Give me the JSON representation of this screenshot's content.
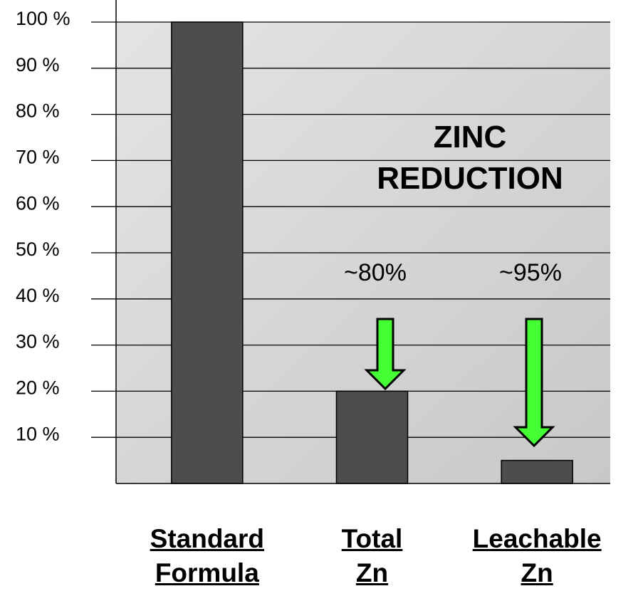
{
  "chart_data": {
    "type": "bar",
    "categories": [
      "Standard Formula",
      "Total Zn",
      "Leachable Zn"
    ],
    "values": [
      100,
      20,
      5
    ],
    "color": "#4d4d4d",
    "ylim": [
      0,
      100
    ],
    "yticks": [
      {
        "value": 10,
        "label": "10 %"
      },
      {
        "value": 20,
        "label": "20 %"
      },
      {
        "value": 30,
        "label": "30 %"
      },
      {
        "value": 40,
        "label": "40 %"
      },
      {
        "value": 50,
        "label": "50 %"
      },
      {
        "value": 60,
        "label": "60 %"
      },
      {
        "value": 70,
        "label": "70 %"
      },
      {
        "value": 80,
        "label": "80 %"
      },
      {
        "value": 90,
        "label": "90 %"
      },
      {
        "value": 100,
        "label": "100 %"
      }
    ],
    "grid": true,
    "annotations": [
      "ZINC REDUCTION",
      "~80%",
      "~95%"
    ]
  }
}
